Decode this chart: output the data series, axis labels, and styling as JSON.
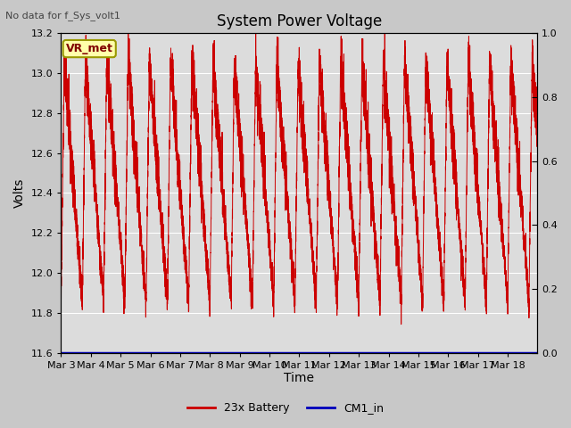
{
  "title": "System Power Voltage",
  "subtitle": "No data for f_Sys_volt1",
  "xlabel": "Time",
  "ylabel": "Volts",
  "ylim_left": [
    11.6,
    13.2
  ],
  "ylim_right": [
    0.0,
    1.0
  ],
  "yticks_left": [
    11.6,
    11.8,
    12.0,
    12.2,
    12.4,
    12.6,
    12.8,
    13.0,
    13.2
  ],
  "yticks_right": [
    0.0,
    0.2,
    0.4,
    0.6,
    0.8,
    1.0
  ],
  "xtick_labels": [
    "Mar 3",
    "Mar 4",
    "Mar 5",
    "Mar 6",
    "Mar 7",
    "Mar 8",
    "Mar 9",
    "Mar 10",
    "Mar 11",
    "Mar 12",
    "Mar 13",
    "Mar 14",
    "Mar 15",
    "Mar 16",
    "Mar 17",
    "Mar 18"
  ],
  "plot_bg_color": "#dcdcdc",
  "fig_bg_color": "#c8c8c8",
  "line_color_battery": "#cc0000",
  "line_color_cm1": "#0000bb",
  "legend_labels": [
    "23x Battery",
    "CM1_in"
  ],
  "vr_met_box_color": "#ffffaa",
  "vr_met_text_color": "#800000",
  "vr_met_border_color": "#999900",
  "grid_color": "#ffffff",
  "num_days": 16,
  "seed": 42
}
